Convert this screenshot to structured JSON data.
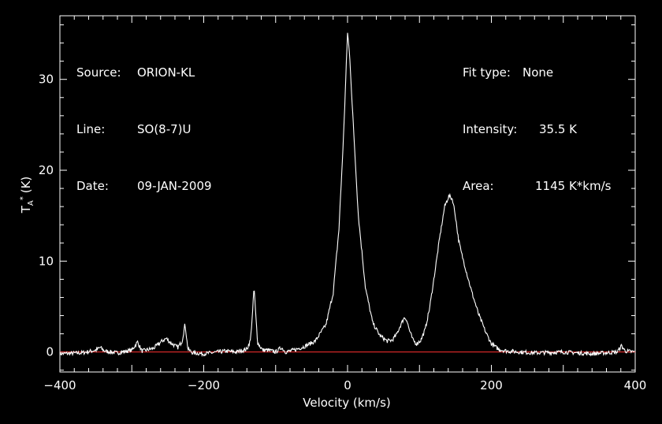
{
  "chart_data": {
    "type": "line",
    "xlabel": "Velocity (km/s)",
    "ylabel": "T",
    "ylabel_sub": "A",
    "ylabel_sup": "*",
    "ylabel_unit": "(K)",
    "xlim": [
      -400,
      400
    ],
    "ylim": [
      -2.2,
      37
    ],
    "xticks": [
      -400,
      -200,
      0,
      200,
      400
    ],
    "yticks": [
      0,
      10,
      20,
      30
    ],
    "grid": false,
    "series": [
      {
        "color": "#ffffff",
        "x": [
          -400,
          -370,
          -350,
          -344,
          -338,
          -320,
          -300,
          -292,
          -286,
          -270,
          -258,
          -252,
          -246,
          -236,
          -230,
          -226,
          -222,
          -215,
          -200,
          -180,
          -170,
          -155,
          -140,
          -135,
          -132,
          -130,
          -128,
          -125,
          -118,
          -110,
          -100,
          -92,
          -86,
          -75,
          -60,
          -45,
          -30,
          -20,
          -12,
          -6,
          -2,
          0,
          3,
          8,
          15,
          25,
          35,
          45,
          55,
          62,
          68,
          74,
          79,
          82,
          86,
          91,
          96,
          102,
          108,
          114,
          120,
          128,
          135,
          141,
          146,
          150,
          154,
          158,
          164,
          172,
          182,
          192,
          200,
          210,
          222,
          240,
          260,
          300,
          340,
          375,
          381,
          386,
          400
        ],
        "y": [
          -0.2,
          -0.1,
          0.2,
          0.5,
          0.1,
          -0.1,
          0.2,
          1.1,
          0.1,
          0.4,
          1.2,
          1.5,
          1.0,
          0.5,
          1.2,
          3.1,
          0.3,
          -0.1,
          -0.2,
          0.0,
          0.1,
          0.0,
          0.3,
          1.3,
          4.5,
          7.2,
          4.5,
          1.0,
          0.2,
          0.2,
          0.0,
          0.5,
          0.0,
          0.2,
          0.6,
          1.2,
          3.0,
          6.5,
          13.5,
          23.0,
          31.0,
          35.2,
          32.5,
          25.0,
          15.0,
          7.0,
          3.2,
          1.8,
          1.2,
          1.3,
          1.9,
          3.0,
          3.8,
          3.6,
          2.4,
          1.3,
          0.9,
          1.3,
          2.5,
          4.8,
          8.0,
          12.5,
          16.0,
          17.2,
          16.8,
          15.0,
          12.5,
          11.0,
          9.2,
          6.8,
          4.2,
          2.2,
          0.9,
          0.3,
          0.1,
          0.0,
          -0.1,
          0.0,
          -0.2,
          0.0,
          0.7,
          0.1,
          0.0
        ]
      }
    ],
    "baseline": {
      "y": 0,
      "color": "#ff3030"
    }
  },
  "info_left": [
    {
      "label": "Source:",
      "value": "ORION-KL"
    },
    {
      "label": "Line:",
      "value": "SO(8-7)U"
    },
    {
      "label": "Date:",
      "value": "09-JAN-2009"
    }
  ],
  "info_right": [
    {
      "label": "Fit type:",
      "value": "None"
    },
    {
      "label": "Intensity:",
      "value": "35.5 K"
    },
    {
      "label": "Area:",
      "value": "1145 K*km/s"
    }
  ]
}
